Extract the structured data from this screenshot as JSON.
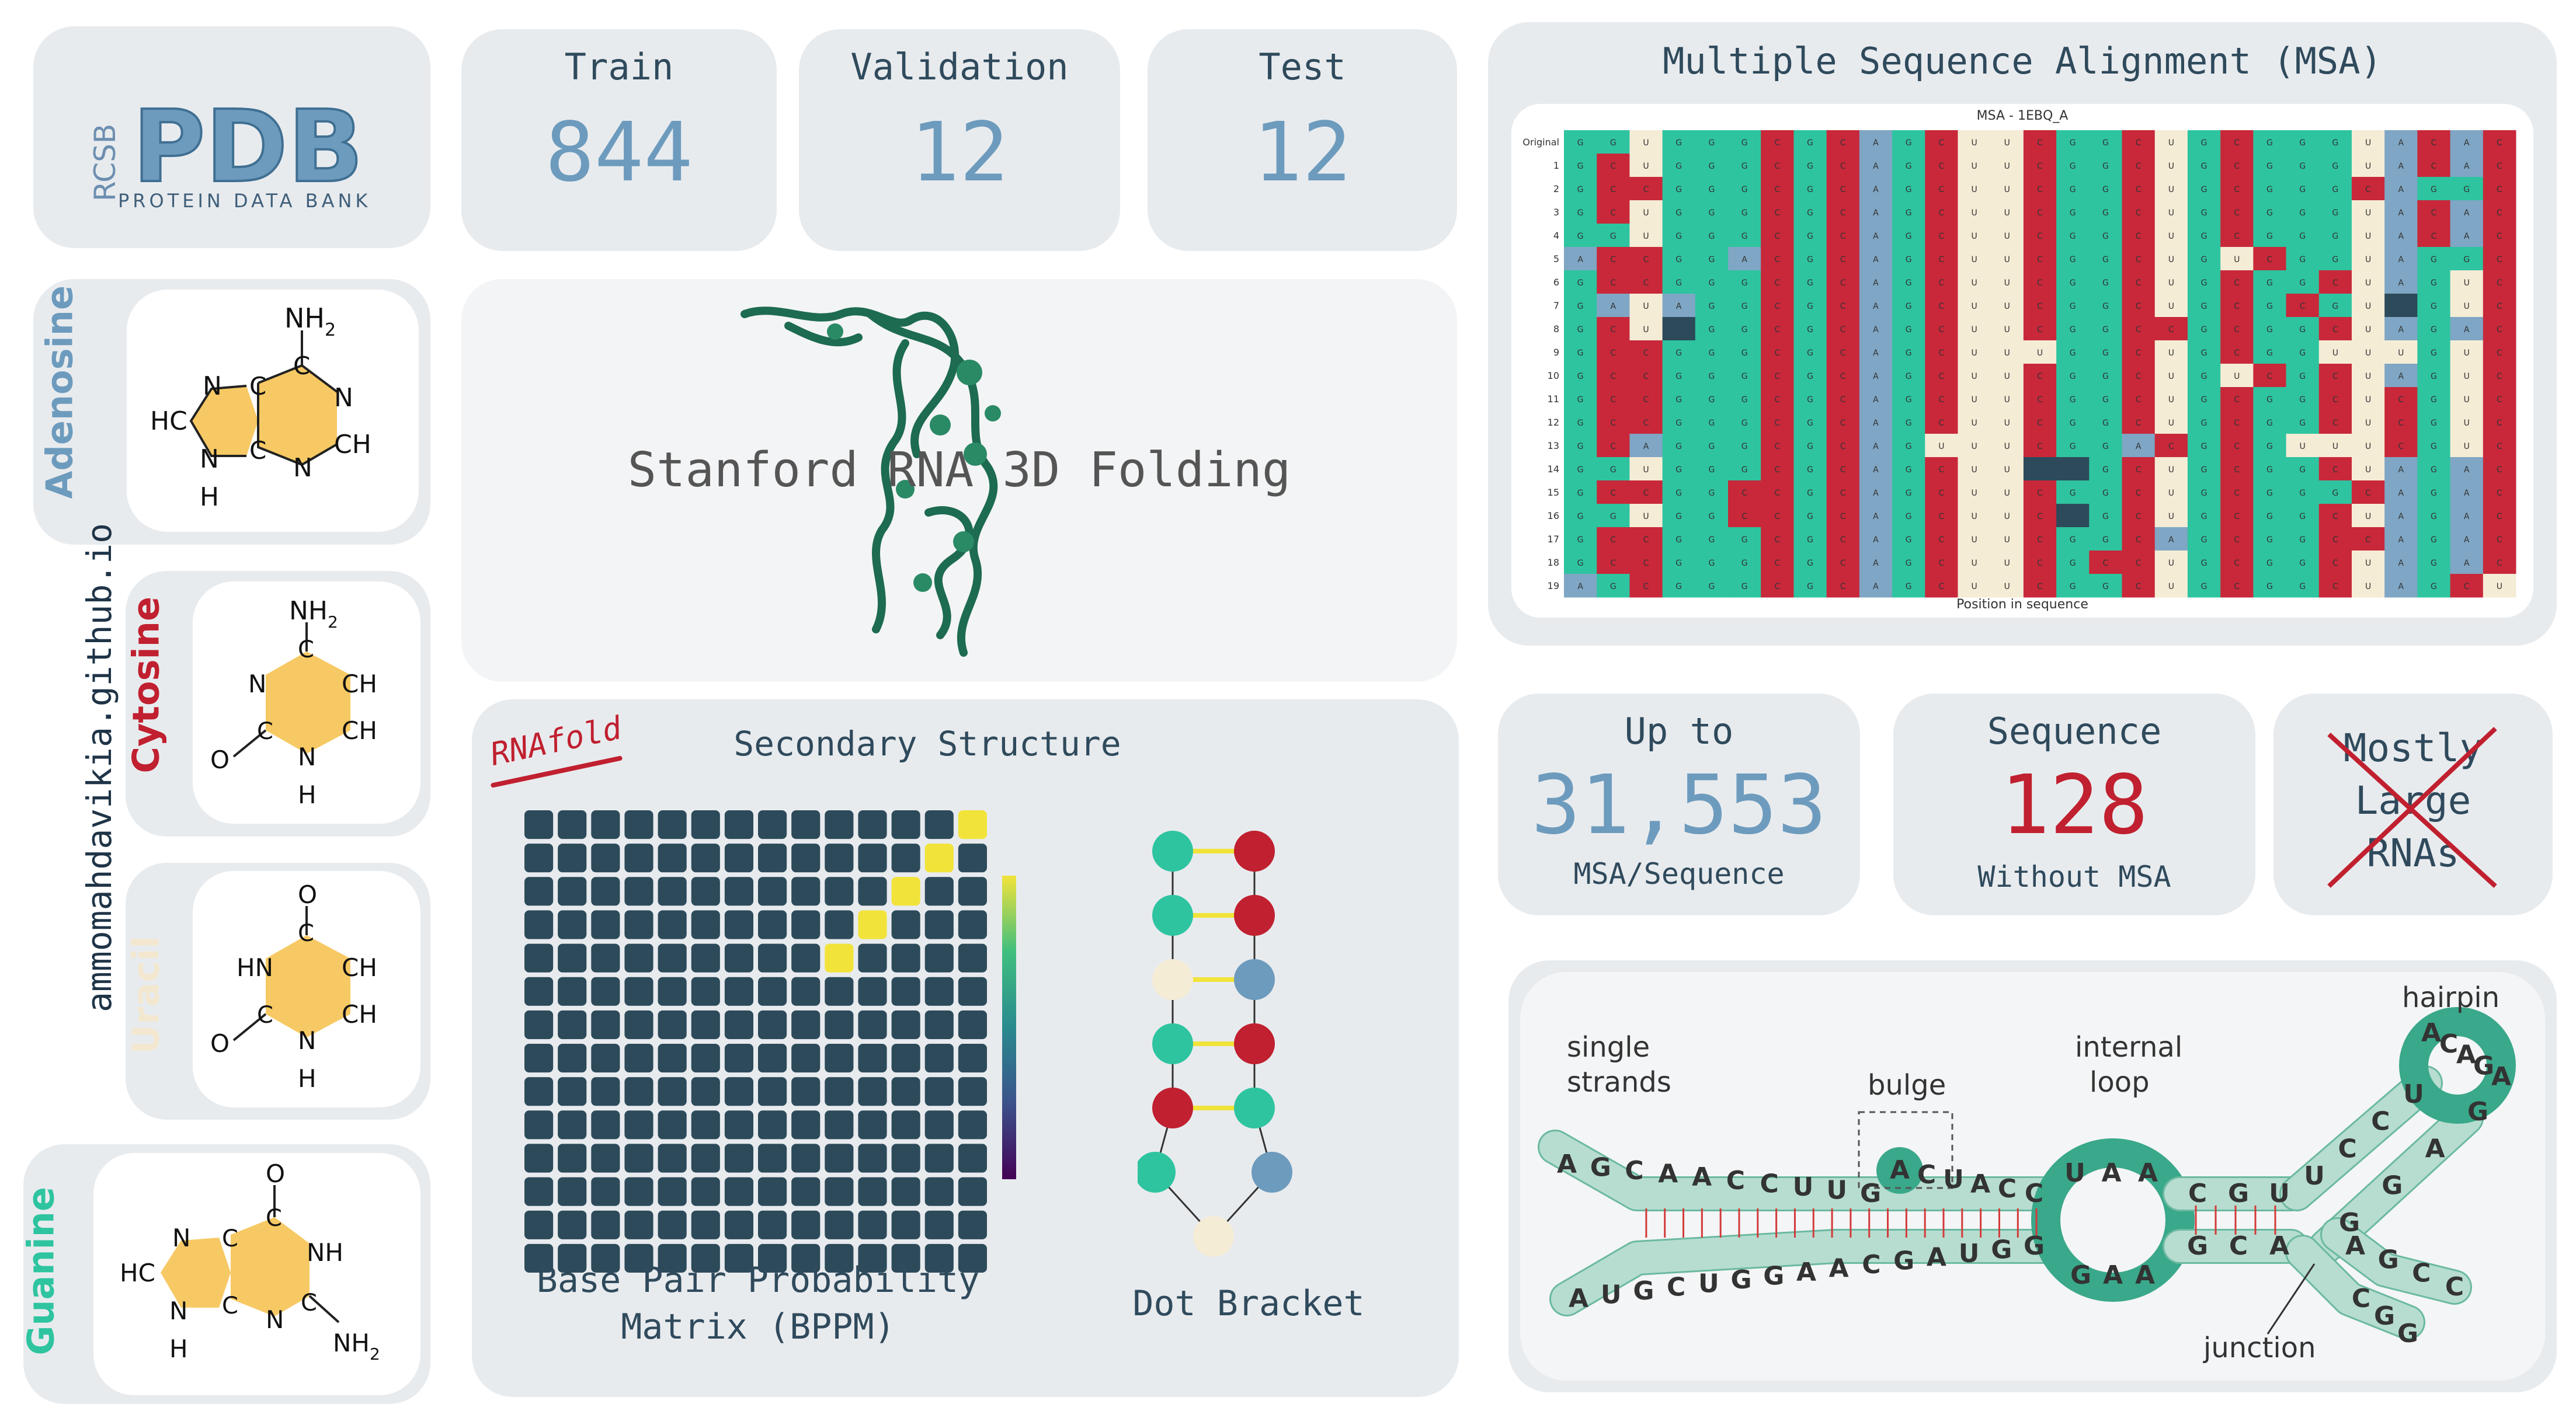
{
  "logo": {
    "prefix": "RCSB",
    "name": "PDB",
    "subtitle": "PROTEIN DATA BANK"
  },
  "splits": [
    {
      "label": "Train",
      "value": "844"
    },
    {
      "label": "Validation",
      "value": "12"
    },
    {
      "label": "Test",
      "value": "12"
    }
  ],
  "hero": {
    "title": "Stanford RNA 3D Folding"
  },
  "nucleotides": [
    {
      "name": "Adenosine",
      "color": "#6d9bbd"
    },
    {
      "name": "Cytosine",
      "color": "#c0202f"
    },
    {
      "name": "Uracil",
      "color": "#f3e8cf"
    },
    {
      "name": "Guanine",
      "color": "#2ec4a0"
    }
  ],
  "atoms": {
    "amino": "NH",
    "sub2": "2",
    "n": "N",
    "c": "C",
    "h": "H",
    "hc": "HC",
    "ch": "CH",
    "nh": "NH",
    "hn": "HN",
    "o": "O"
  },
  "site": "ammomahdavikia.github.io",
  "msa": {
    "title": "Multiple Sequence Alignment (MSA)",
    "plot_title": "MSA - 1EBQ_A",
    "xlabel": "Position in sequence",
    "row_labels": [
      "Original",
      "1",
      "2",
      "3",
      "4",
      "5",
      "6",
      "7",
      "8",
      "9",
      "10",
      "11",
      "12",
      "13",
      "14",
      "15",
      "16",
      "17",
      "18",
      "19"
    ],
    "colors": {
      "A": "#7fa6c4",
      "C": "#c8283a",
      "G": "#2ec4a0",
      "U": "#f5ecd6",
      "dark": "#2c4a5a"
    },
    "rows": [
      "GGUGGGCGCAGCUUCGGCUGCGGGUACAC",
      "GCUGGGCGCAGCUUCGGCUGCGGGUACAC",
      "GCCGGGCGCAGCUUCGGCUGCGGGCAGGC",
      "GCUGGGCGCAGCUUCGGCUGCGGGUACAC",
      "GGUGGGCGCAGCUUCGGCUGCGGGUACAC",
      "ACCGGACGCAGCUUCGGCUGUCGGUAGGC",
      "GCCGGGCGCAGCUUCGGCUGCGGCUAGUC",
      "GAUAGGCGCAGCUUCGGCUGCGCGUXGUC",
      "GCUXGGCGCAGCUUCGGCCGCGGCUAGAC",
      "GCCGGGCGCAGCUUUGGCUGCGGUUUGUC",
      "GCCGGGCGCAGCUUCGGCUGUCGCUAGUC",
      "GCCGGGCGCAGCUUCGGCUGCGGCUCGUC",
      "GCCGGGCGCAGCUUCGGCUGCGGCUCGUC",
      "GCAGGGCGCAGUUUCGGACGCGUUUCGUC",
      "GGUGGGCGCAGCUUXXGCUGCGGCUAGAC",
      "GCCGGCCGCAGCUUCGGCUGCGGGCAGAC",
      "GGUGGCCGCAGCUUCXGCUGCGGCUAGAC",
      "GCCGGGCGCAGCUUCGGCAGCGGCCAGAC",
      "GCCGGGCGCAGCUUCGCCUGCGGCUAGAC",
      "AGCGGGCGCAGCUUCGGCUGCGGCUAGCU"
    ]
  },
  "stats": [
    {
      "label": "Up to",
      "value": "31,553",
      "sub": "MSA/Sequence",
      "value_color": "#6d9bbd"
    },
    {
      "label": "Sequence",
      "value": "128",
      "sub": "Without MSA",
      "value_color": "#c0202f"
    }
  ],
  "mostly": {
    "lines": [
      "Mostly",
      "Large",
      "RNAs"
    ]
  },
  "secondary": {
    "title": "Secondary Structure",
    "tool": "RNAfold",
    "bppm_label_1": "Base Pair Probability",
    "bppm_label_2": "Matrix (BPPM)",
    "dot_label": "Dot Bracket",
    "grid_size": 14,
    "pairs": [
      [
        0,
        13
      ],
      [
        1,
        12
      ],
      [
        2,
        11
      ],
      [
        3,
        10
      ],
      [
        4,
        9
      ]
    ],
    "cell_color": "#2c4a5a",
    "pair_color": "#f2e33a"
  },
  "dotbracket": {
    "left": [
      "#2ec4a0",
      "#2ec4a0",
      "#f5ecd6",
      "#2ec4a0",
      "#c0202f"
    ],
    "right": [
      "#c0202f",
      "#c0202f",
      "#6d9bbd",
      "#c0202f",
      "#2ec4a0"
    ],
    "loop": [
      "#2ec4a0",
      "#f5ecd6",
      "#6d9bbd"
    ]
  },
  "diagram": {
    "labels": {
      "single": "single",
      "strands": "strands",
      "bulge": "bulge",
      "internal": "internal",
      "loop": "loop",
      "hairpin": "hairpin",
      "junction": "junction"
    },
    "top_strand": [
      "A",
      "G",
      "C",
      "A",
      "A",
      "C",
      "C",
      "U",
      "U",
      "G",
      "A",
      "C",
      "U",
      "A",
      "C",
      "C"
    ],
    "bottom_strand": [
      "A",
      "U",
      "G",
      "C",
      "U",
      "G",
      "G",
      "A",
      "A",
      "C",
      "G",
      "A",
      "U",
      "G",
      "G"
    ],
    "internal_top": [
      "U",
      "A",
      "A"
    ],
    "internal_bottom": [
      "G",
      "A",
      "A"
    ],
    "stem_top": [
      "C",
      "G",
      "U"
    ],
    "stem_bottom": [
      "G",
      "C",
      "A"
    ],
    "hairpin_stem_left": [
      "U",
      "C",
      "C",
      "U"
    ],
    "hairpin_loop": [
      "A",
      "C",
      "A",
      "G",
      "A"
    ],
    "hairpin_stem_right": [
      "G",
      "A",
      "G",
      "G"
    ],
    "junction_right": [
      "A",
      "G",
      "C",
      "C"
    ],
    "junction_bottom": [
      "C",
      "G",
      "G"
    ]
  }
}
